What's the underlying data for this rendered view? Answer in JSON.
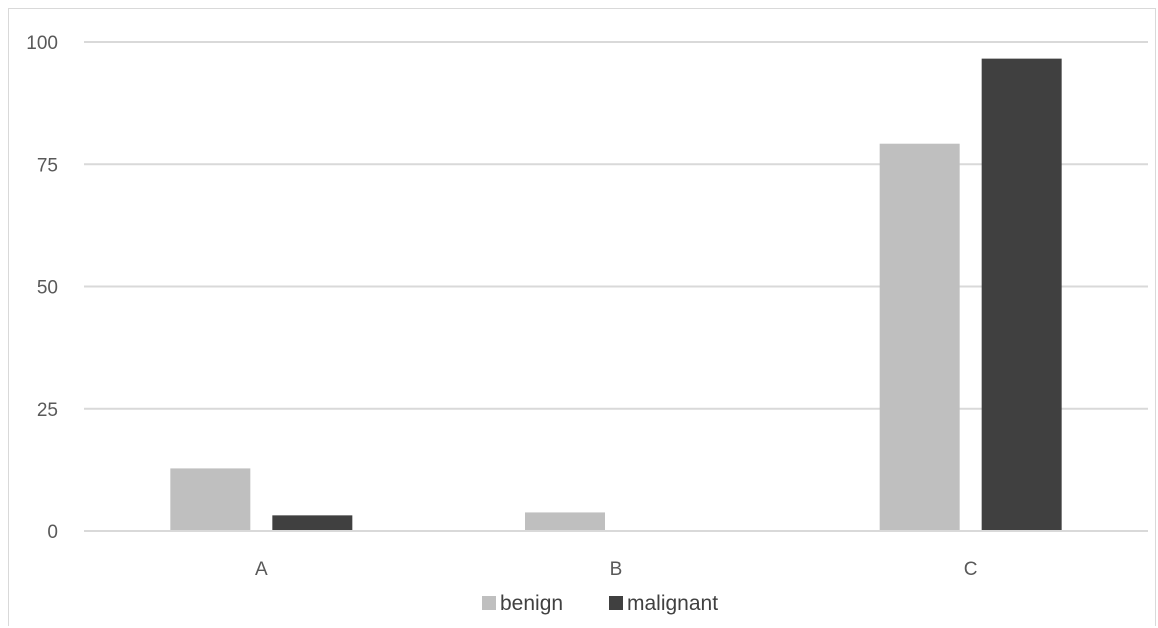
{
  "chart_data": {
    "type": "bar",
    "categories": [
      "A",
      "B",
      "C"
    ],
    "series": [
      {
        "name": "benign",
        "color": "#bfbfbf",
        "values": [
          12.8,
          3.8,
          79.2
        ]
      },
      {
        "name": "malignant",
        "color": "#404040",
        "values": [
          3.2,
          0,
          96.6
        ]
      }
    ],
    "title": "",
    "xlabel": "",
    "ylabel": "",
    "ylim": [
      0,
      100
    ],
    "yticks": [
      "0",
      "25",
      "50",
      "75",
      "100"
    ],
    "grid": true,
    "legend_position": "bottom"
  }
}
